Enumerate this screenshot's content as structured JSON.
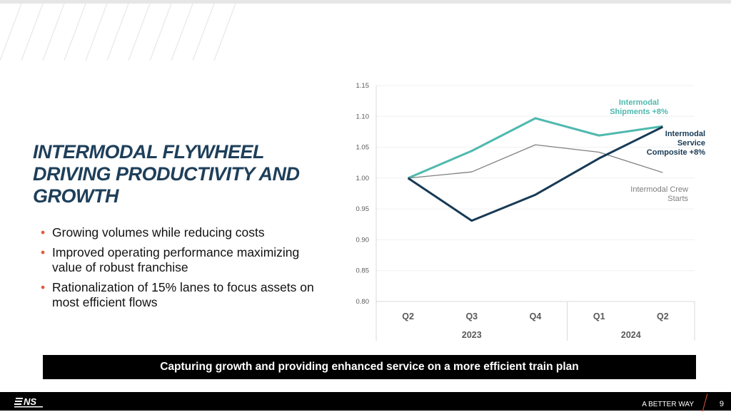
{
  "slide": {
    "title": "INTERMODAL FLYWHEEL DRIVING PRODUCTIVITY AND GROWTH",
    "bullets": [
      "Growing volumes while reducing costs",
      "Improved operating performance maximizing value of robust franchise",
      "Rationalization of 15% lanes to focus assets on most efficient flows"
    ],
    "banner": "Capturing growth and providing enhanced service on a more efficient train plan",
    "footer_tagline": "A BETTER WAY",
    "page_number": "9",
    "logo_text": "NS NORFOLK SOUTHERN"
  },
  "chart_data": {
    "type": "line",
    "categories": [
      "Q2",
      "Q3",
      "Q4",
      "Q1",
      "Q2"
    ],
    "category_groups": [
      {
        "label": "2023",
        "span": 3
      },
      {
        "label": "2024",
        "span": 2
      }
    ],
    "ylim": [
      0.8,
      1.15
    ],
    "yticks": [
      "0.80",
      "0.85",
      "0.90",
      "0.95",
      "1.00",
      "1.05",
      "1.10",
      "1.15"
    ],
    "grid": true,
    "series": [
      {
        "name": "Intermodal Shipments +8%",
        "values": [
          1.0,
          1.044,
          1.097,
          1.069,
          1.084
        ],
        "color": "#4fb9ae"
      },
      {
        "name": "Intermodal Crew Starts",
        "values": [
          1.0,
          1.01,
          1.054,
          1.042,
          1.009
        ],
        "color": "#7f7f7f"
      },
      {
        "name": "Intermodal Service Composite +8%",
        "values": [
          1.0,
          0.931,
          0.973,
          1.032,
          1.083
        ],
        "color": "#173a55"
      }
    ]
  }
}
